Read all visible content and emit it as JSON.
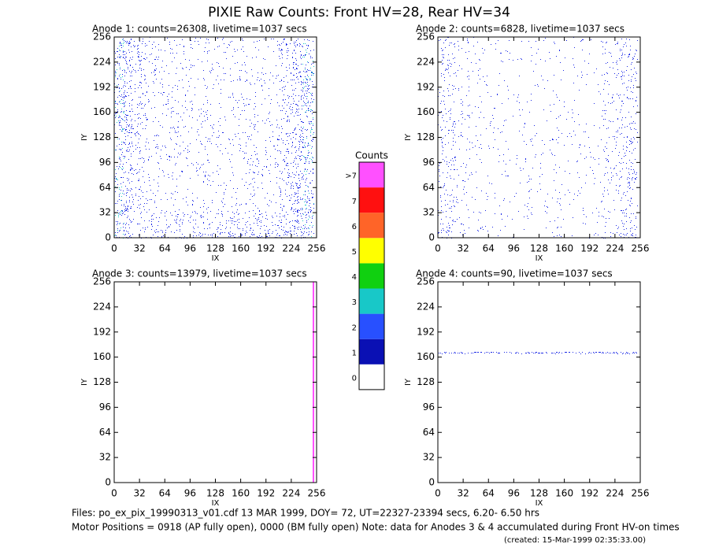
{
  "title": "PIXIE Raw Counts:  Front HV=28, Rear HV=34",
  "panels": [
    {
      "title": "Anode 1: counts=26308, livetime=1037 secs",
      "xlabel": "IX",
      "ylabel": "IY",
      "xlim": [
        0,
        256
      ],
      "ylim": [
        0,
        256
      ],
      "xticks": [
        0,
        32,
        64,
        96,
        128,
        160,
        192,
        224,
        256
      ],
      "yticks": [
        0,
        32,
        64,
        96,
        128,
        160,
        192,
        224,
        256
      ]
    },
    {
      "title": "Anode 2: counts=6828, livetime=1037 secs",
      "xlabel": "IX",
      "ylabel": "IY",
      "xlim": [
        0,
        256
      ],
      "ylim": [
        0,
        256
      ],
      "xticks": [
        0,
        32,
        64,
        96,
        128,
        160,
        192,
        224,
        256
      ],
      "yticks": [
        0,
        32,
        64,
        96,
        128,
        160,
        192,
        224,
        256
      ]
    },
    {
      "title": "Anode 3: counts=13979, livetime=1037 secs",
      "xlabel": "IX",
      "ylabel": "IY",
      "xlim": [
        0,
        256
      ],
      "ylim": [
        0,
        256
      ],
      "xticks": [
        0,
        32,
        64,
        96,
        128,
        160,
        192,
        224,
        256
      ],
      "yticks": [
        0,
        32,
        64,
        96,
        128,
        160,
        192,
        224,
        256
      ]
    },
    {
      "title": "Anode 4: counts=90, livetime=1037 secs",
      "xlabel": "IX",
      "ylabel": "IY",
      "xlim": [
        0,
        256
      ],
      "ylim": [
        0,
        256
      ],
      "xticks": [
        0,
        32,
        64,
        96,
        128,
        160,
        192,
        224,
        256
      ],
      "yticks": [
        0,
        32,
        64,
        96,
        128,
        160,
        192,
        224,
        256
      ]
    }
  ],
  "colorbar": {
    "title": "Counts",
    "labels": [
      "0",
      "1",
      "2",
      "3",
      "4",
      "5",
      "6",
      "7",
      ">7"
    ],
    "colors": [
      "#ffffff",
      "#0a10b4",
      "#2850ff",
      "#18c8c8",
      "#10d010",
      "#ffff00",
      "#ff6428",
      "#ff1010",
      "#ff50ff"
    ]
  },
  "footer": [
    "Files: po_ex_pix_19990313_v01.cdf   13 MAR 1999, DOY= 72, UT=22327-23394 secs,  6.20- 6.50 hrs",
    "Motor Positions = 0918 (AP fully open), 0000 (BM fully open)   Note: data for Anodes 3 & 4 accumulated during Front HV-on times",
    "(created: 15-Mar-1999 02:35:33.00)"
  ]
}
